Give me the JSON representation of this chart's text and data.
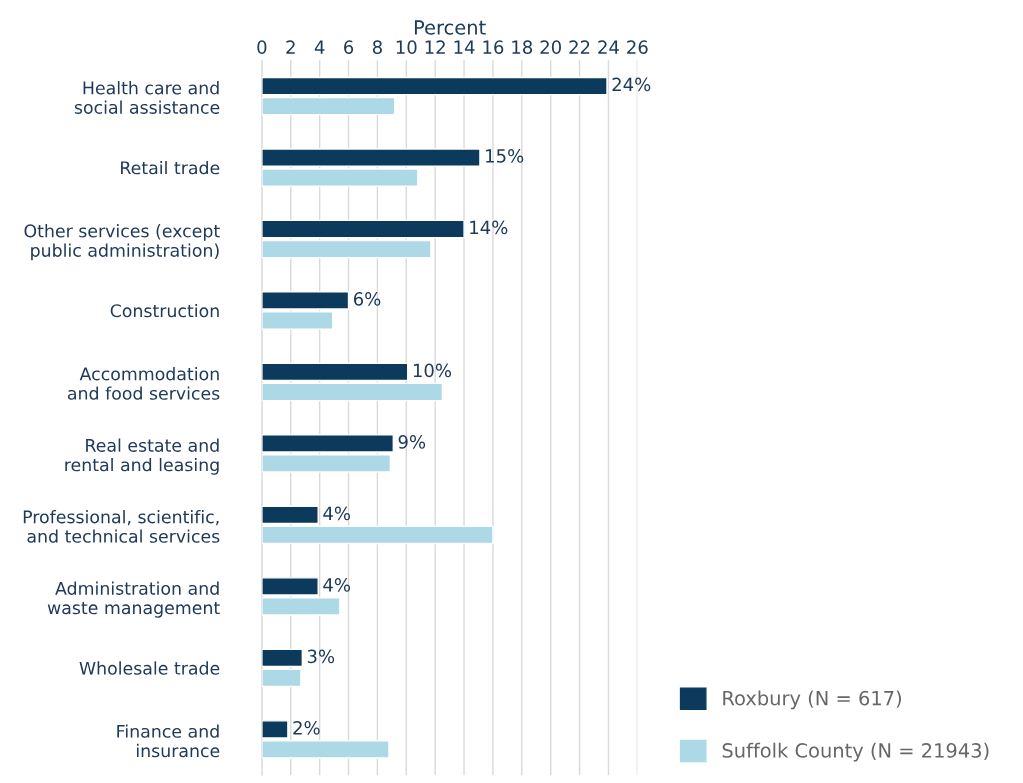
{
  "chart_data": {
    "type": "bar",
    "orientation": "horizontal",
    "xlabel": "Percent",
    "categories": [
      "Health care and\nsocial assistance",
      "Retail trade",
      "Other services (except\npublic administration)",
      "Construction",
      "Accommodation\nand food services",
      "Real estate and\nrental and leasing",
      "Professional, scientific,\nand technical services",
      "Administration and\nwaste management",
      "Wholesale trade",
      "Finance and\ninsurance"
    ],
    "series": [
      {
        "name": "Roxbury (N = 617)",
        "color": "#0b3a5c",
        "values": [
          23.9,
          15.1,
          14.0,
          6.0,
          10.1,
          9.1,
          3.9,
          3.9,
          2.8,
          1.8
        ],
        "value_labels": [
          "24%",
          "15%",
          "14%",
          "6%",
          "10%",
          "9%",
          "4%",
          "4%",
          "3%",
          "2%"
        ]
      },
      {
        "name": "Suffolk County (N = 21943)",
        "color": "#add8e6",
        "values": [
          9.2,
          10.8,
          11.7,
          4.9,
          12.5,
          8.9,
          16.0,
          5.4,
          2.7,
          8.8
        ]
      }
    ],
    "xlim": [
      0,
      26
    ],
    "xticks": [
      0,
      2,
      4,
      6,
      8,
      10,
      12,
      14,
      16,
      18,
      20,
      22,
      24,
      26
    ],
    "grid": "x",
    "legend": "bottom right"
  }
}
